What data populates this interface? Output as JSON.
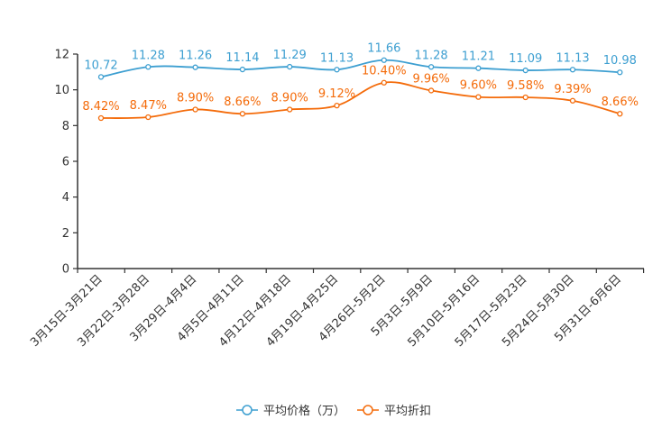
{
  "chart_data": {
    "type": "line",
    "categories": [
      "3月15日-3月21日",
      "3月22日-3月28日",
      "3月29日-4月4日",
      "4月5日-4月11日",
      "4月12日-4月18日",
      "4月19日-4月25日",
      "4月26日-5月2日",
      "5月3日-5月9日",
      "5月10日-5月16日",
      "5月17日-5月23日",
      "5月24日-5月30日",
      "5月31日-6月6日"
    ],
    "ylim": [
      0,
      12
    ],
    "yticks": [
      0,
      2,
      4,
      6,
      8,
      10,
      12
    ],
    "grid": false,
    "legend_position": "bottom-center",
    "series": [
      {
        "name": "平均价格（万）",
        "color": "#3d9fd1",
        "values": [
          10.72,
          11.28,
          11.26,
          11.14,
          11.29,
          11.13,
          11.66,
          11.28,
          11.21,
          11.09,
          11.13,
          10.98
        ],
        "labels": [
          "10.72",
          "11.28",
          "11.26",
          "11.14",
          "11.29",
          "11.13",
          "11.66",
          "11.28",
          "11.21",
          "11.09",
          "11.13",
          "10.98"
        ]
      },
      {
        "name": "平均折扣",
        "color": "#f46b0a",
        "values": [
          8.42,
          8.47,
          8.9,
          8.66,
          8.9,
          9.12,
          10.4,
          9.96,
          9.6,
          9.58,
          9.39,
          8.66
        ],
        "labels": [
          "8.42%",
          "8.47%",
          "8.90%",
          "8.66%",
          "8.90%",
          "9.12%",
          "10.40%",
          "9.96%",
          "9.60%",
          "9.58%",
          "9.39%",
          "8.66%"
        ]
      }
    ]
  }
}
